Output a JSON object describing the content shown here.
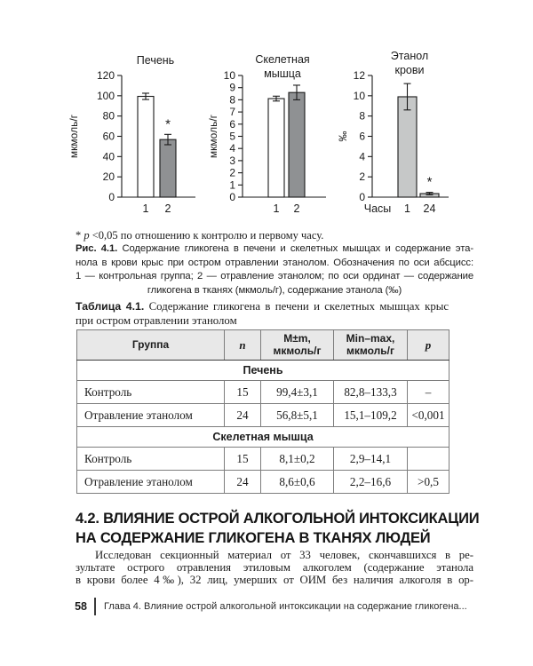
{
  "page": {
    "number": "58",
    "running_title": "Глава 4. Влияние острой алкогольной интоксикации на содержание гликогена..."
  },
  "figure_note": {
    "star": "*",
    "p": "p",
    "text": "<0,05 по отношению к контролю и первому часу."
  },
  "figure_caption": {
    "label": "Рис. 4.1.",
    "line1_rest": "Содержание гликогена в печени и скелетных мышцах и содержание эта-",
    "lines": [
      "нола в крови крыс при остром отравлении этанолом. Обозначения по оси абсцисс:",
      "1 — контрольная группа; 2 — отравление этанолом; по оси ординат — содержание",
      "гликогена в тканях (мкмоль/г), содержание этанола (‰)"
    ]
  },
  "chart_data": [
    {
      "type": "bar",
      "title": "Печень",
      "title_lines": [
        "Печень"
      ],
      "ylabel": "мкмоль/г",
      "ylim": [
        0,
        120
      ],
      "ytick_step": 20,
      "categories": [
        "1",
        "2"
      ],
      "values": [
        99.4,
        56.8
      ],
      "errors": [
        3.1,
        5.1
      ],
      "bar_colors": [
        "#ffffff",
        "#8f9193"
      ],
      "significant": [
        false,
        true
      ]
    },
    {
      "type": "bar",
      "title": "Скелетная мышца",
      "title_lines": [
        "Скелетная",
        "мышца"
      ],
      "ylabel": "мкмоль/г",
      "ylim": [
        0,
        10
      ],
      "ytick_step": 1,
      "categories": [
        "1",
        "2"
      ],
      "values": [
        8.1,
        8.6
      ],
      "errors": [
        0.2,
        0.6
      ],
      "bar_colors": [
        "#ffffff",
        "#8f9193"
      ],
      "significant": [
        false,
        false
      ]
    },
    {
      "type": "bar",
      "title": "Этанол крови",
      "title_lines": [
        "Этанол",
        "крови"
      ],
      "ylabel": "‰",
      "ylim": [
        0,
        12
      ],
      "ytick_step": 2,
      "categories": [
        "1",
        "24"
      ],
      "x_axis_prefix": "Часы",
      "values": [
        9.9,
        0.35
      ],
      "errors": [
        1.3,
        0.12
      ],
      "bar_colors": [
        "#c6c8c8",
        "#c6c8c8"
      ],
      "significant": [
        false,
        true
      ]
    }
  ],
  "table": {
    "caption_label": "Таблица 4.1.",
    "caption_line1_rest": "Содержание гликогена в печени и скелетных мышцах крыс",
    "caption_line2": "при остром отравлении этанолом",
    "headers": [
      "Группа",
      "n",
      "M±m,\nмкмоль/г",
      "Min–max,\nмкмоль/г",
      "p"
    ],
    "sections": [
      {
        "title": "Печень",
        "rows": [
          [
            "Контроль",
            "15",
            "99,4±3,1",
            "82,8–133,3",
            "–"
          ],
          [
            "Отравление этанолом",
            "24",
            "56,8±5,1",
            "15,1–109,2",
            "<0,001"
          ]
        ]
      },
      {
        "title": "Скелетная мышца",
        "rows": [
          [
            "Контроль",
            "15",
            "8,1±0,2",
            "2,9–14,1",
            ""
          ],
          [
            "Отравление этанолом",
            "24",
            "8,6±0,6",
            "2,2–16,6",
            ">0,5"
          ]
        ]
      }
    ]
  },
  "section_heading": {
    "lines": [
      "4.2. ВЛИЯНИЕ ОСТРОЙ АЛКОГОЛЬНОЙ ИНТОКСИКАЦИИ",
      "НА СОДЕРЖАНИЕ ГЛИКОГЕНА В ТКАНЯХ ЛЮДЕЙ"
    ]
  },
  "paragraph": {
    "lines": [
      "Исследован секционный материал от 33 человек, скончавшихся в ре-",
      "зультате острого отравления этиловым алкоголем (содержание этанола",
      "в крови более 4‰), 32 лиц, умерших от ОИМ без наличия алкоголя в ор-"
    ]
  },
  "colors": {
    "bar_white": "#ffffff",
    "bar_gray": "#8f9193",
    "bar_light_gray": "#c6c8c8",
    "table_header_bg": "#e8e8e8"
  }
}
